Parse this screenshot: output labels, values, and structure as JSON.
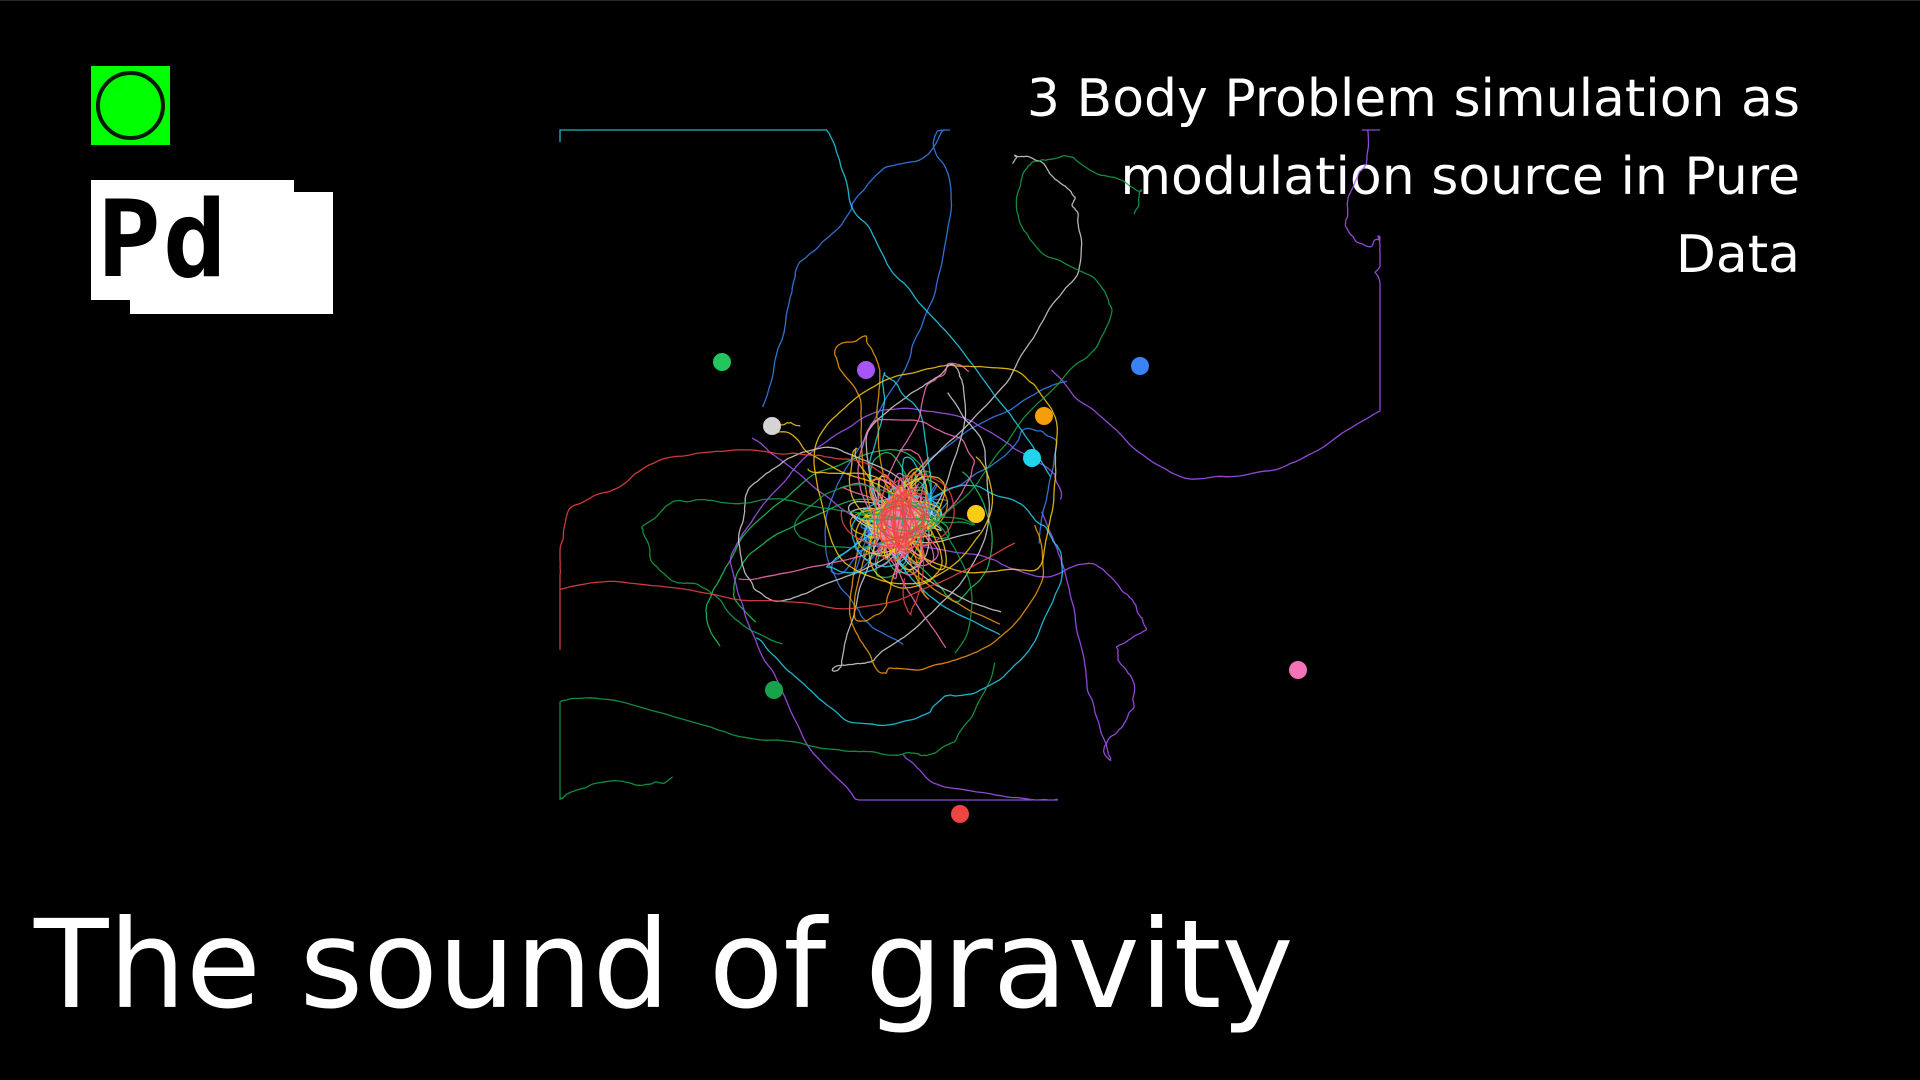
{
  "toggle": {
    "state": "on",
    "color": "#00ff00"
  },
  "logo": {
    "text": "Pd"
  },
  "subtitle": "3 Body Problem simulation as modulation source in Pure Data",
  "title": "The sound of gravity",
  "colors": {
    "background": "#000000",
    "text": "#ffffff",
    "accent": "#00ff00"
  },
  "bodies": [
    {
      "name": "green",
      "color": "#22c55e"
    },
    {
      "name": "purple",
      "color": "#a855f7"
    },
    {
      "name": "blue",
      "color": "#3b82f6"
    },
    {
      "name": "white",
      "color": "#d4d4d4"
    },
    {
      "name": "orange",
      "color": "#f59e0b"
    },
    {
      "name": "cyan",
      "color": "#22d3ee"
    },
    {
      "name": "yellow",
      "color": "#facc15"
    },
    {
      "name": "pink",
      "color": "#f472b6"
    },
    {
      "name": "teal",
      "color": "#16a34a"
    },
    {
      "name": "red",
      "color": "#ef4444"
    }
  ]
}
